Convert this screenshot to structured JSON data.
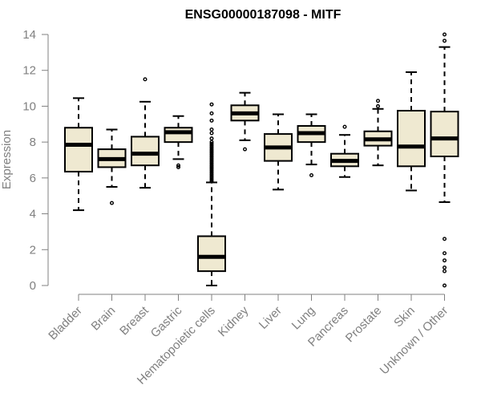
{
  "chart_data": {
    "type": "boxplot",
    "title": "ENSG00000187098 - MITF",
    "xlabel": "",
    "ylabel": "Expression",
    "ylim": [
      0,
      14
    ],
    "yticks": [
      0,
      2,
      4,
      6,
      8,
      10,
      12,
      14
    ],
    "colors": {
      "box_fill": "#efe9d1",
      "box_stroke": "#000000",
      "axis": "#808080"
    },
    "categories": [
      "Bladder",
      "Brain",
      "Breast",
      "Gastric",
      "Hematopoietic cells",
      "Kidney",
      "Liver",
      "Lung",
      "Pancreas",
      "Prostate",
      "Skin",
      "Unknown / Other"
    ],
    "boxes": [
      {
        "name": "Bladder",
        "whisker_low": 4.2,
        "q1": 6.35,
        "median": 7.85,
        "q3": 8.8,
        "whisker_high": 10.45,
        "outliers": []
      },
      {
        "name": "Brain",
        "whisker_low": 5.5,
        "q1": 6.6,
        "median": 7.05,
        "q3": 7.6,
        "whisker_high": 8.7,
        "outliers": [
          4.6
        ]
      },
      {
        "name": "Breast",
        "whisker_low": 5.45,
        "q1": 6.7,
        "median": 7.35,
        "q3": 8.3,
        "whisker_high": 10.25,
        "outliers": [
          11.5
        ]
      },
      {
        "name": "Gastric",
        "whisker_low": 7.05,
        "q1": 8.0,
        "median": 8.55,
        "q3": 8.8,
        "whisker_high": 9.45,
        "outliers": [
          6.6,
          6.7
        ]
      },
      {
        "name": "Hematopoietic cells",
        "whisker_low": 0.0,
        "q1": 0.8,
        "median": 1.6,
        "q3": 2.75,
        "whisker_high": 5.75,
        "outliers": [
          5.8,
          5.9,
          6.0,
          6.1,
          6.2,
          6.3,
          6.4,
          6.5,
          6.6,
          6.7,
          6.8,
          6.9,
          7.0,
          7.1,
          7.2,
          7.3,
          7.4,
          7.5,
          7.6,
          7.7,
          7.8,
          7.9,
          8.0,
          8.2,
          8.5,
          8.7,
          9.2,
          9.6,
          10.1
        ]
      },
      {
        "name": "Kidney",
        "whisker_low": 8.1,
        "q1": 9.2,
        "median": 9.6,
        "q3": 10.05,
        "whisker_high": 10.75,
        "outliers": [
          7.6
        ]
      },
      {
        "name": "Liver",
        "whisker_low": 5.35,
        "q1": 6.95,
        "median": 7.7,
        "q3": 8.45,
        "whisker_high": 9.55,
        "outliers": []
      },
      {
        "name": "Lung",
        "whisker_low": 6.75,
        "q1": 8.0,
        "median": 8.5,
        "q3": 8.9,
        "whisker_high": 9.55,
        "outliers": [
          6.15
        ]
      },
      {
        "name": "Pancreas",
        "whisker_low": 6.05,
        "q1": 6.65,
        "median": 6.95,
        "q3": 7.35,
        "whisker_high": 8.4,
        "outliers": [
          8.85
        ]
      },
      {
        "name": "Prostate",
        "whisker_low": 6.7,
        "q1": 7.8,
        "median": 8.15,
        "q3": 8.6,
        "whisker_high": 9.85,
        "outliers": [
          10.3,
          10.0
        ]
      },
      {
        "name": "Skin",
        "whisker_low": 5.3,
        "q1": 6.65,
        "median": 7.75,
        "q3": 9.75,
        "whisker_high": 11.9,
        "outliers": []
      },
      {
        "name": "Unknown / Other",
        "whisker_low": 4.65,
        "q1": 7.2,
        "median": 8.2,
        "q3": 9.7,
        "whisker_high": 13.3,
        "outliers": [
          0.0,
          0.8,
          1.0,
          1.4,
          1.8,
          2.6,
          13.65,
          14.0
        ]
      }
    ]
  }
}
